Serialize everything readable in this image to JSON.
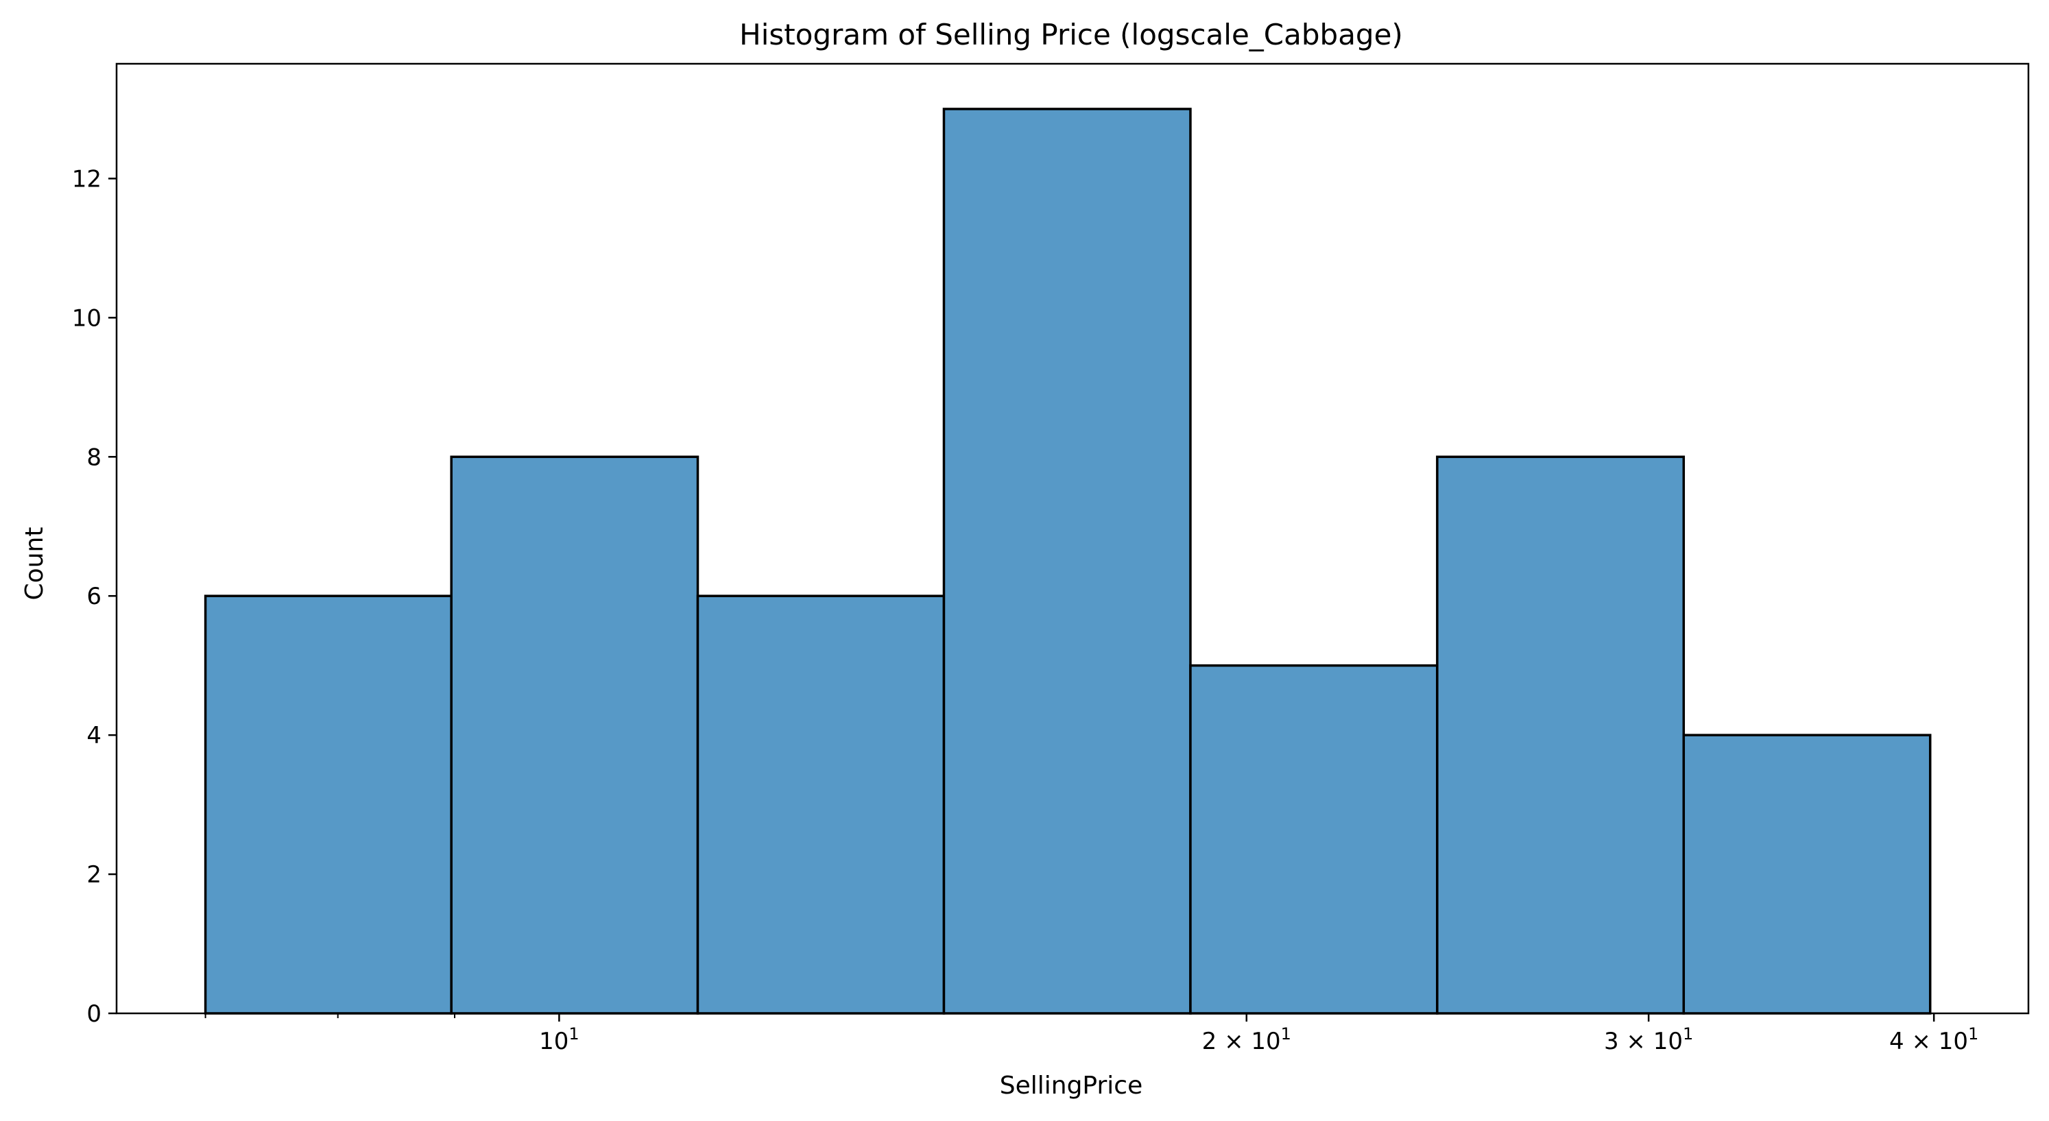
{
  "chart_data": {
    "type": "bar",
    "title": "Histogram of Selling Price (logscale_Cabbage)",
    "xlabel": "SellingPrice",
    "ylabel": "Count",
    "x_scale": "log",
    "xlim": [
      6.4,
      44
    ],
    "ylim": [
      0,
      13.65
    ],
    "bins": [
      {
        "x0": 7.0,
        "x1": 8.97,
        "count": 6
      },
      {
        "x0": 8.97,
        "x1": 11.5,
        "count": 8
      },
      {
        "x0": 11.5,
        "x1": 14.74,
        "count": 6
      },
      {
        "x0": 14.74,
        "x1": 18.9,
        "count": 13
      },
      {
        "x0": 18.9,
        "x1": 24.24,
        "count": 5
      },
      {
        "x0": 24.24,
        "x1": 31.08,
        "count": 8
      },
      {
        "x0": 31.08,
        "x1": 39.85,
        "count": 4
      }
    ],
    "y_ticks": [
      0,
      2,
      4,
      6,
      8,
      10,
      12
    ],
    "x_major_ticks": [
      {
        "value": 10,
        "base": "10",
        "exp": "1",
        "prefix": ""
      },
      {
        "value": 20,
        "base": "10",
        "exp": "1",
        "prefix": "2 × "
      },
      {
        "value": 30,
        "base": "10",
        "exp": "1",
        "prefix": "3 × "
      },
      {
        "value": 40,
        "base": "10",
        "exp": "1",
        "prefix": "4 × "
      }
    ],
    "x_minor_ticks": [
      7,
      8,
      9
    ],
    "bar_color": "#5799c7",
    "edge_color": "#000000",
    "grid": false,
    "legend": "none"
  }
}
